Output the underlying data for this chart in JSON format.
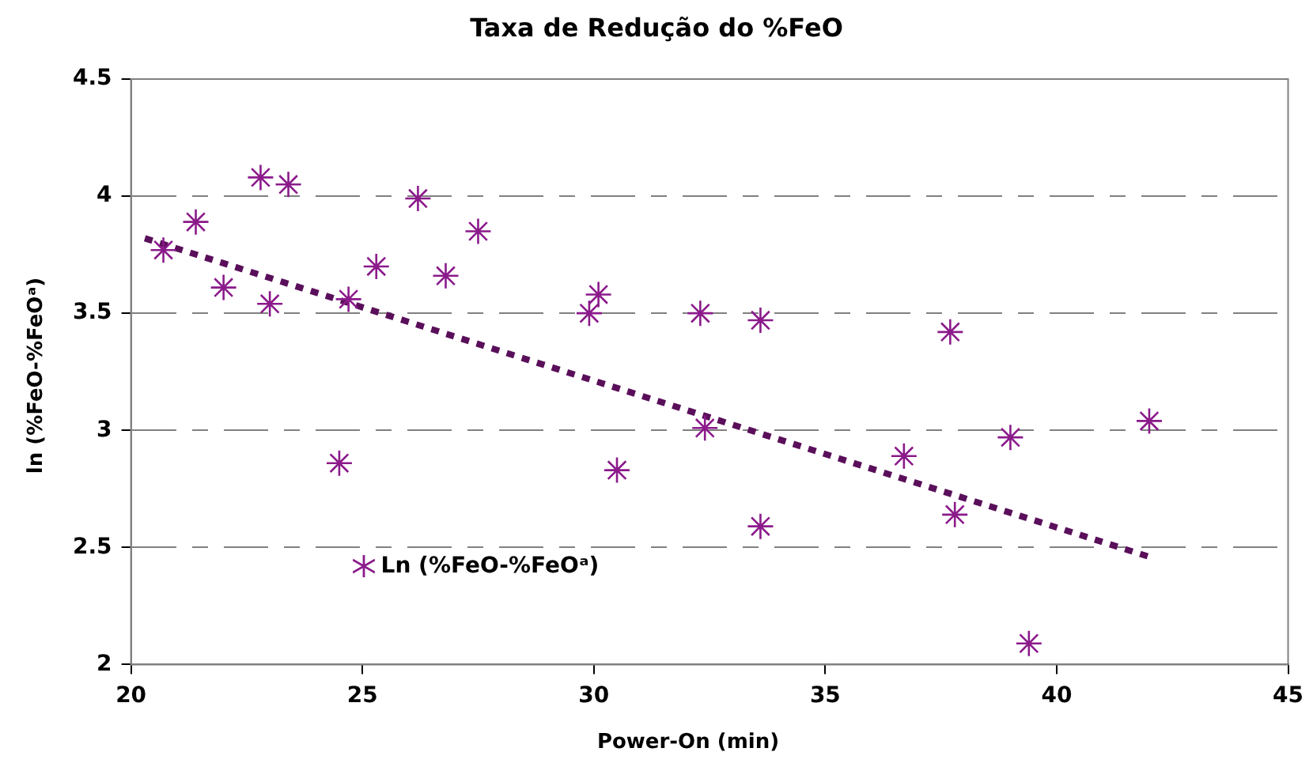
{
  "chart_data": {
    "type": "scatter",
    "title": "Taxa de Redução do %FeO",
    "xlabel": "Power-On (min)",
    "ylabel": "ln (%FeO-%FeOᵃ)",
    "xlim": [
      20,
      45
    ],
    "xticks": [
      20,
      25,
      30,
      35,
      40,
      45
    ],
    "ylim": [
      2,
      4.5
    ],
    "yticks": [
      2,
      2.5,
      3,
      3.5,
      4,
      4.5
    ],
    "grid": "y",
    "legend": "bottom left",
    "marker": "cross",
    "series": [
      {
        "name": "Ln (%FeO-%FeOᵃ)",
        "color": "#8b1a8b",
        "x": [
          20.7,
          21.4,
          22.0,
          22.8,
          23.4,
          23.0,
          24.5,
          24.7,
          25.3,
          26.2,
          26.8,
          27.5,
          29.9,
          30.1,
          30.5,
          32.3,
          32.4,
          33.6,
          33.6,
          36.7,
          37.7,
          37.8,
          39.0,
          39.4,
          42.0
        ],
        "values": [
          3.77,
          3.89,
          3.61,
          4.08,
          4.05,
          3.54,
          2.86,
          3.56,
          3.7,
          3.99,
          3.66,
          3.85,
          3.5,
          3.58,
          2.83,
          3.5,
          3.01,
          3.47,
          2.59,
          2.89,
          3.42,
          2.64,
          2.97,
          2.09,
          3.04
        ]
      },
      {
        "type": "line",
        "color": "#5a0f5a",
        "marker": "none",
        "line_style": "dotted",
        "x": [
          20.3,
          42.0
        ],
        "values": [
          3.82,
          2.46
        ]
      }
    ]
  }
}
